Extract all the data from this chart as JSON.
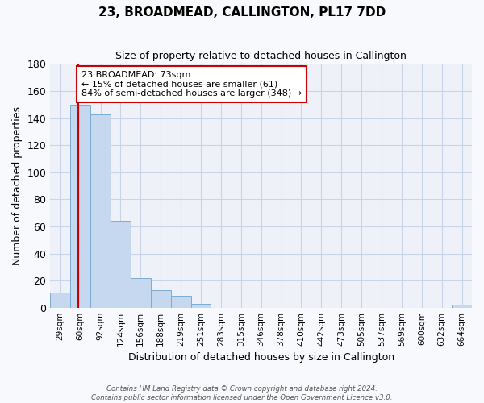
{
  "title": "23, BROADMEAD, CALLINGTON, PL17 7DD",
  "subtitle": "Size of property relative to detached houses in Callington",
  "xlabel": "Distribution of detached houses by size in Callington",
  "ylabel": "Number of detached properties",
  "bin_labels": [
    "29sqm",
    "60sqm",
    "92sqm",
    "124sqm",
    "156sqm",
    "188sqm",
    "219sqm",
    "251sqm",
    "283sqm",
    "315sqm",
    "346sqm",
    "378sqm",
    "410sqm",
    "442sqm",
    "473sqm",
    "505sqm",
    "537sqm",
    "569sqm",
    "600sqm",
    "632sqm",
    "664sqm"
  ],
  "bin_values": [
    11,
    150,
    143,
    64,
    22,
    13,
    9,
    3,
    0,
    0,
    0,
    0,
    0,
    0,
    0,
    0,
    0,
    0,
    0,
    0,
    2
  ],
  "bar_color": "#c5d8f0",
  "bar_edge_color": "#7aadd4",
  "grid_color": "#c8d4e8",
  "bg_color": "#eef2f8",
  "fig_color": "#f8f9fc",
  "red_line_color": "#cc0000",
  "annotation_text": "23 BROADMEAD: 73sqm\n← 15% of detached houses are smaller (61)\n84% of semi-detached houses are larger (348) →",
  "annotation_box_color": "#ffffff",
  "annotation_box_edge": "#cc0000",
  "ylim": [
    0,
    180
  ],
  "yticks": [
    0,
    20,
    40,
    60,
    80,
    100,
    120,
    140,
    160,
    180
  ],
  "footer_line1": "Contains HM Land Registry data © Crown copyright and database right 2024.",
  "footer_line2": "Contains public sector information licensed under the Open Government Licence v3.0."
}
